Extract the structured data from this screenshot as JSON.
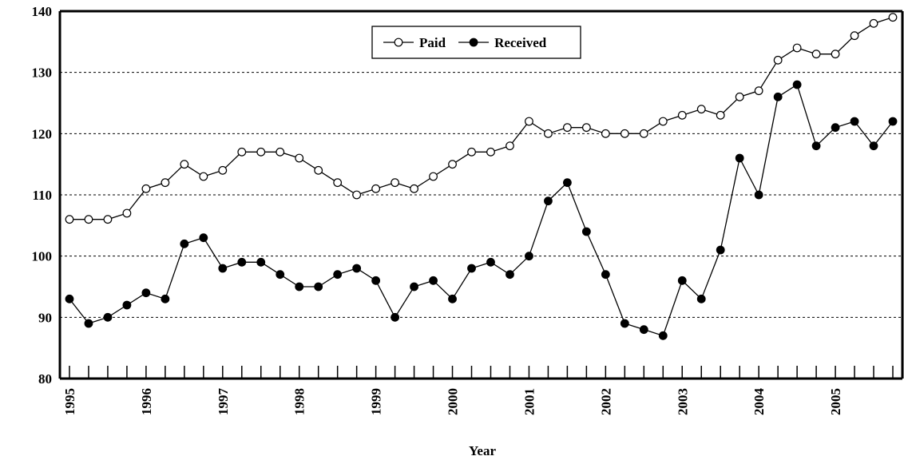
{
  "chart_data": {
    "type": "line",
    "x_label": "Year",
    "categories": [
      "1995",
      null,
      null,
      null,
      "1996",
      null,
      null,
      null,
      "1997",
      null,
      null,
      null,
      "1998",
      null,
      null,
      null,
      "1999",
      null,
      null,
      null,
      "2000",
      null,
      null,
      null,
      "2001",
      null,
      null,
      null,
      "2002",
      null,
      null,
      null,
      "2003",
      null,
      null,
      null,
      "2004",
      null,
      null,
      null,
      "2005",
      null,
      null,
      null
    ],
    "series": [
      {
        "name": "Paid",
        "color": "#000000",
        "marker": "open",
        "values": [
          106,
          106,
          106,
          107,
          111,
          112,
          115,
          113,
          114,
          117,
          117,
          117,
          116,
          114,
          112,
          110,
          111,
          112,
          111,
          113,
          115,
          117,
          117,
          118,
          122,
          120,
          121,
          121,
          120,
          120,
          120,
          122,
          123,
          124,
          123,
          126,
          127,
          132,
          134,
          133,
          133,
          136,
          138,
          139
        ]
      },
      {
        "name": "Received",
        "color": "#000000",
        "marker": "filled",
        "values": [
          93,
          89,
          90,
          92,
          94,
          93,
          102,
          103,
          98,
          99,
          99,
          97,
          95,
          95,
          97,
          98,
          96,
          90,
          95,
          96,
          93,
          98,
          99,
          97,
          100,
          109,
          112,
          104,
          97,
          89,
          88,
          87,
          96,
          93,
          101,
          116,
          110,
          126,
          128,
          118,
          121,
          122,
          118,
          122
        ]
      }
    ],
    "ylim": [
      80,
      140
    ],
    "yticks": [
      80,
      90,
      100,
      110,
      120,
      130,
      140
    ],
    "grid": true,
    "legend": "top"
  }
}
